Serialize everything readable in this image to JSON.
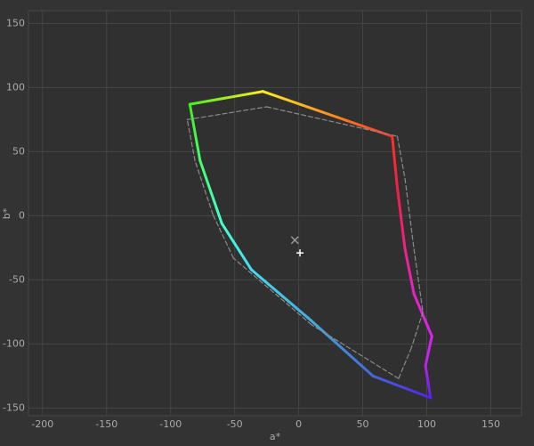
{
  "chart_data": {
    "type": "line",
    "xlabel": "a*",
    "ylabel": "b*",
    "xlim": [
      -211,
      174
    ],
    "ylim": [
      -156,
      160
    ],
    "xticks": [
      -200,
      -150,
      -100,
      -50,
      0,
      50,
      100,
      150
    ],
    "yticks": [
      -150,
      -100,
      -50,
      0,
      50,
      100,
      150
    ],
    "grid": true,
    "series": [
      {
        "x": [
          -85,
          -28,
          73,
          77,
          83,
          90,
          104,
          99,
          103,
          58,
          10,
          -37,
          -60,
          -77
        ],
        "values": [
          87,
          97,
          62,
          22,
          -26,
          -61,
          -94,
          -117,
          -142,
          -125,
          -82,
          -42,
          -6,
          43
        ],
        "colors": [
          "#44ee22",
          "#ffee22",
          "#ff3322",
          "#ee2244",
          "#ee2288",
          "#e822c8",
          "#dd22ee",
          "#bb22ee",
          "#5522ee",
          "#4466dd",
          "#44aadd",
          "#44ddee",
          "#44ffcc",
          "#44ff66"
        ],
        "closed": true,
        "dash": false
      },
      {
        "x": [
          -87,
          -25,
          77,
          83,
          90,
          97,
          88,
          78,
          10,
          -51,
          -67,
          -81
        ],
        "values": [
          75,
          85,
          62,
          29,
          -26,
          -75,
          -103,
          -127,
          -85,
          -33,
          1,
          43
        ],
        "color": "#8a8a8a",
        "closed": true,
        "dash": true
      },
      {
        "x": [
          -3
        ],
        "values": [
          -19
        ],
        "marker": "x",
        "color": "#9a9a9a"
      },
      {
        "x": [
          1
        ],
        "values": [
          -29
        ],
        "marker": "+",
        "color": "#ffffff"
      }
    ]
  }
}
